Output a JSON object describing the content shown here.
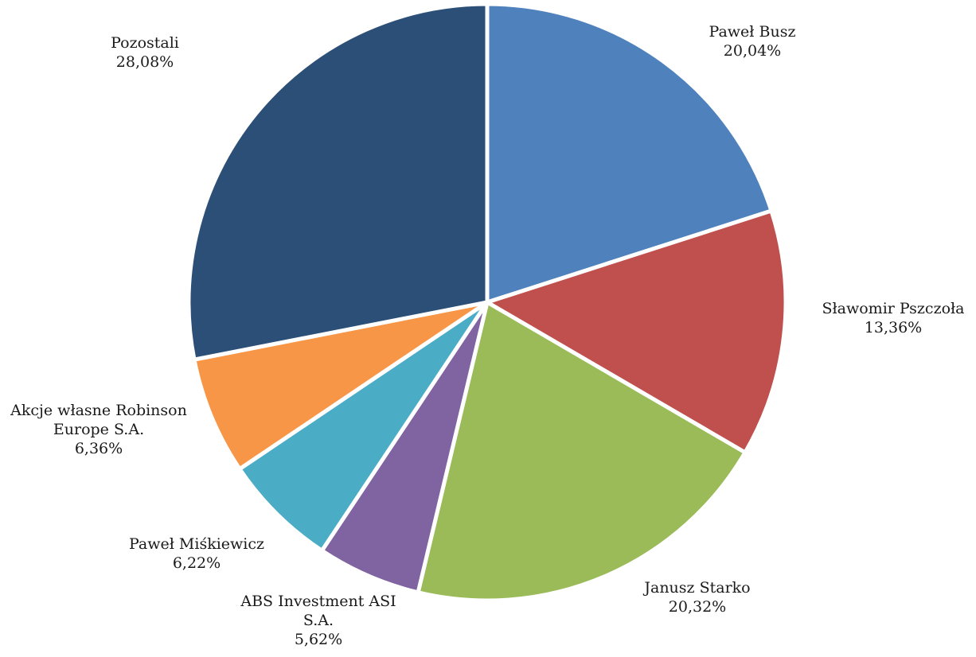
{
  "chart_data": {
    "type": "pie",
    "title": "",
    "start_angle_deg": 0,
    "direction": "clockwise",
    "slices": [
      {
        "name": "Paweł Busz",
        "value": 20.04,
        "value_label": "20,04%",
        "color": "#4F81BD"
      },
      {
        "name": "Sławomir Pszczoła",
        "value": 13.36,
        "value_label": "13,36%",
        "color": "#C0504D"
      },
      {
        "name": "Janusz Starko",
        "value": 20.32,
        "value_label": "20,32%",
        "color": "#9BBB59"
      },
      {
        "name": "ABS Investment ASI S.A.",
        "value": 5.62,
        "value_label": "5,62%",
        "color": "#8064A2"
      },
      {
        "name": "Paweł Miśkiewicz",
        "value": 6.22,
        "value_label": "6,22%",
        "color": "#4BACC6"
      },
      {
        "name": "Akcje własne Robinson Europe S.A.",
        "value": 6.36,
        "value_label": "6,36%",
        "color": "#F79646"
      },
      {
        "name": "Pozostali",
        "value": 28.08,
        "value_label": "28,08%",
        "color": "#2C4F77"
      }
    ]
  }
}
